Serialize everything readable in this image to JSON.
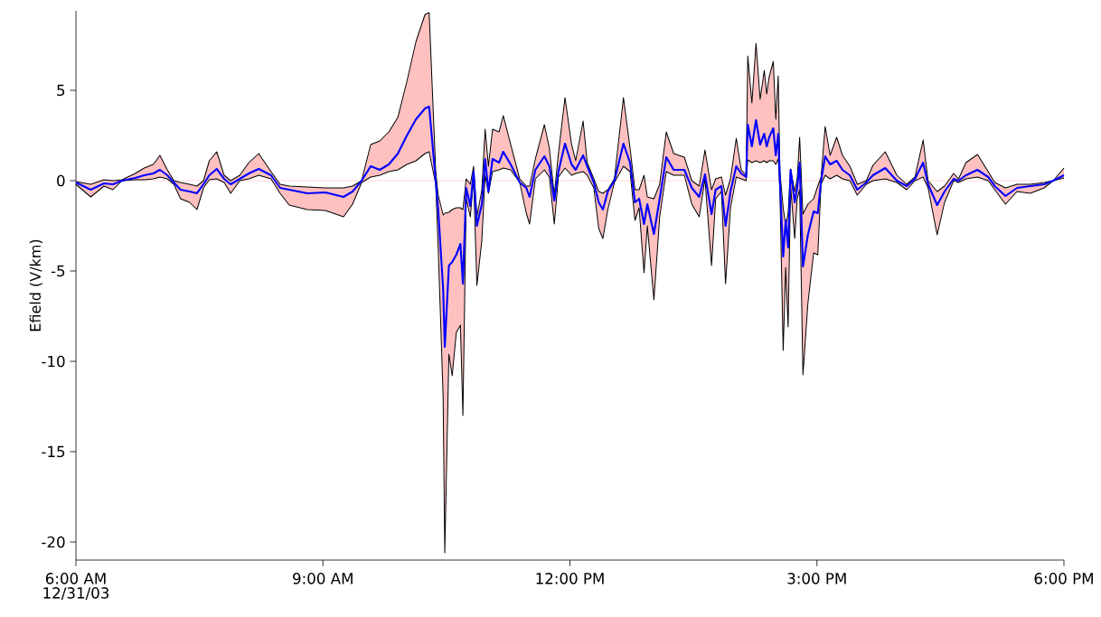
{
  "chart_data": {
    "type": "line",
    "ylabel": "Efield (V/km)",
    "annotations": [
      "12/31/03"
    ],
    "xlim": [
      6,
      18
    ],
    "ylim": [
      -21,
      9.4
    ],
    "xticks": [
      {
        "value": 6,
        "label": "6:00 AM"
      },
      {
        "value": 9,
        "label": "9:00 AM"
      },
      {
        "value": 12,
        "label": "12:00 PM"
      },
      {
        "value": 15,
        "label": "3:00 PM"
      },
      {
        "value": 18,
        "label": "6:00 PM"
      }
    ],
    "yticks": [
      -20,
      -15,
      -10,
      -5,
      0,
      5
    ],
    "grid": false,
    "marker": "none",
    "line_style": "solid",
    "ref_lines": [
      {
        "axis": "y",
        "value": 0,
        "color": "#ffd8d8"
      }
    ],
    "x": [
      6.0,
      6.18,
      6.34,
      6.45,
      6.56,
      6.72,
      6.83,
      6.94,
      7.02,
      7.11,
      7.19,
      7.27,
      7.38,
      7.47,
      7.55,
      7.62,
      7.71,
      7.8,
      7.88,
      7.99,
      8.1,
      8.22,
      8.37,
      8.48,
      8.59,
      8.81,
      9.03,
      9.25,
      9.36,
      9.47,
      9.58,
      9.69,
      9.8,
      9.91,
      10.02,
      10.13,
      10.24,
      10.29,
      10.37,
      10.4,
      10.46,
      10.48,
      10.53,
      10.57,
      10.62,
      10.67,
      10.7,
      10.74,
      10.79,
      10.83,
      10.87,
      10.93,
      10.97,
      11.01,
      11.06,
      11.14,
      11.19,
      11.28,
      11.39,
      11.47,
      11.51,
      11.58,
      11.69,
      11.75,
      11.81,
      11.86,
      11.94,
      12.02,
      12.07,
      12.16,
      12.21,
      12.29,
      12.35,
      12.4,
      12.46,
      12.54,
      12.65,
      12.73,
      12.79,
      12.84,
      12.9,
      12.94,
      13.02,
      13.09,
      13.17,
      13.26,
      13.39,
      13.48,
      13.57,
      13.64,
      13.72,
      13.77,
      13.84,
      13.89,
      13.95,
      14.02,
      14.08,
      14.14,
      14.16,
      14.21,
      14.26,
      14.31,
      14.36,
      14.39,
      14.42,
      14.47,
      14.5,
      14.53,
      14.55,
      14.59,
      14.62,
      14.65,
      14.68,
      14.73,
      14.76,
      14.79,
      14.83,
      14.89,
      14.96,
      15.01,
      15.05,
      15.1,
      15.16,
      15.24,
      15.31,
      15.4,
      15.49,
      15.6,
      15.68,
      15.83,
      15.97,
      16.09,
      16.19,
      16.29,
      16.35,
      16.46,
      16.55,
      16.66,
      16.72,
      16.81,
      16.95,
      17.08,
      17.16,
      17.29,
      17.43,
      17.59,
      17.76,
      17.87,
      18.0
    ],
    "series": [
      {
        "color": "#000000",
        "values": [
          -0.05,
          -0.2,
          0.05,
          0.0,
          0.05,
          0.4,
          0.7,
          0.9,
          1.4,
          0.6,
          0.0,
          -0.1,
          -0.2,
          -0.3,
          0.0,
          1.1,
          1.6,
          0.3,
          0.0,
          0.3,
          1.0,
          1.5,
          0.5,
          -0.2,
          -0.3,
          -0.35,
          -0.4,
          -0.4,
          -0.3,
          0.0,
          2.0,
          2.2,
          2.7,
          3.5,
          5.5,
          7.7,
          9.2,
          9.3,
          0.5,
          -0.8,
          -1.9,
          -1.8,
          -1.75,
          -1.6,
          -1.5,
          -1.5,
          -1.6,
          0.1,
          -0.2,
          0.8,
          -2.0,
          -0.5,
          2.85,
          0.8,
          2.85,
          2.7,
          3.6,
          2.0,
          0.1,
          -0.3,
          -0.3,
          1.2,
          3.1,
          1.8,
          -0.8,
          1.5,
          4.6,
          2.0,
          1.1,
          3.3,
          1.0,
          0.1,
          -0.6,
          -0.7,
          -0.5,
          0.1,
          4.6,
          1.8,
          -0.5,
          -0.5,
          0.3,
          -0.9,
          -1.0,
          -0.2,
          2.7,
          1.5,
          1.3,
          0.0,
          -0.3,
          1.7,
          -0.5,
          0.1,
          0.2,
          -0.8,
          0.1,
          2.35,
          0.6,
          0.3,
          6.9,
          4.3,
          7.6,
          4.5,
          6.1,
          4.8,
          5.75,
          6.6,
          3.4,
          5.8,
          0.5,
          -1.5,
          -2.5,
          -1.8,
          0.65,
          -0.6,
          0.1,
          2.4,
          -1.85,
          -1.3,
          -1.0,
          -0.3,
          0.2,
          3.0,
          1.4,
          2.4,
          1.4,
          0.8,
          -0.2,
          0.0,
          0.85,
          1.6,
          0.3,
          -0.2,
          0.2,
          2.25,
          0.0,
          -0.6,
          -0.3,
          0.4,
          0.1,
          1.0,
          1.45,
          0.5,
          -0.1,
          -0.4,
          -0.2,
          -0.2,
          -0.1,
          0.0,
          0.7
        ]
      },
      {
        "color": "#000000",
        "values": [
          -0.2,
          -0.9,
          -0.3,
          -0.5,
          0.0,
          0.05,
          0.05,
          0.1,
          0.2,
          0.1,
          -0.2,
          -1.0,
          -1.2,
          -1.6,
          -0.4,
          0.05,
          0.1,
          -0.1,
          -0.7,
          0.0,
          0.1,
          0.3,
          0.1,
          -0.7,
          -1.35,
          -1.6,
          -1.65,
          -2.0,
          -1.3,
          -0.1,
          0.2,
          0.3,
          0.5,
          0.6,
          0.9,
          1.1,
          1.5,
          1.6,
          -0.2,
          -3.7,
          -12.0,
          -20.6,
          -9.6,
          -10.8,
          -8.4,
          -8.0,
          -13.0,
          -1.0,
          -2.0,
          0.1,
          -5.8,
          -3.3,
          0.3,
          -0.7,
          0.5,
          0.6,
          0.7,
          0.6,
          -0.1,
          -1.8,
          -2.4,
          0.1,
          0.6,
          0.2,
          -2.4,
          0.2,
          0.7,
          0.3,
          0.4,
          0.5,
          0.3,
          -0.4,
          -2.65,
          -3.2,
          -1.6,
          -0.1,
          0.8,
          0.5,
          -2.2,
          -1.5,
          -5.1,
          -2.5,
          -6.6,
          -2.0,
          0.5,
          0.3,
          0.3,
          -1.3,
          -2.0,
          0.1,
          -4.7,
          -1.0,
          -0.6,
          -5.7,
          -1.5,
          0.2,
          0.1,
          0.0,
          1.15,
          1.0,
          1.1,
          1.0,
          1.1,
          1.0,
          1.1,
          1.1,
          0.9,
          1.2,
          -0.5,
          -9.4,
          -4.8,
          -8.1,
          -0.3,
          -3.2,
          -1.0,
          -0.5,
          -10.75,
          -6.8,
          -4.0,
          -4.1,
          -0.2,
          0.3,
          0.1,
          0.3,
          0.1,
          0.0,
          -0.8,
          -0.2,
          0.0,
          0.1,
          -0.1,
          -0.5,
          0.0,
          0.2,
          -0.4,
          -3.0,
          -1.2,
          0.0,
          -0.1,
          0.1,
          0.2,
          0.0,
          -0.5,
          -1.3,
          -0.6,
          -0.7,
          -0.4,
          0.0,
          0.15
        ]
      },
      {
        "color": "#0000ff",
        "values": [
          -0.1,
          -0.5,
          -0.15,
          -0.2,
          0.0,
          0.15,
          0.3,
          0.4,
          0.6,
          0.3,
          -0.1,
          -0.5,
          -0.6,
          -0.7,
          -0.2,
          0.3,
          0.65,
          0.1,
          -0.2,
          0.1,
          0.4,
          0.65,
          0.3,
          -0.4,
          -0.5,
          -0.7,
          -0.65,
          -0.9,
          -0.6,
          0.0,
          0.8,
          0.6,
          0.9,
          1.5,
          2.5,
          3.4,
          4.0,
          4.1,
          0.0,
          -1.6,
          -6.0,
          -9.2,
          -4.7,
          -4.5,
          -4.1,
          -3.5,
          -5.7,
          -0.4,
          -1.4,
          0.5,
          -2.5,
          -1.3,
          1.2,
          -0.6,
          1.2,
          1.0,
          1.6,
          0.9,
          -0.1,
          -0.4,
          -0.9,
          0.6,
          1.35,
          0.8,
          -1.1,
          0.5,
          2.05,
          0.9,
          0.6,
          1.4,
          0.8,
          -0.1,
          -1.2,
          -1.6,
          -0.6,
          0.0,
          2.05,
          1.0,
          -1.2,
          -1.0,
          -2.4,
          -1.3,
          -2.95,
          -1.0,
          1.3,
          0.6,
          0.6,
          -0.4,
          -0.9,
          0.35,
          -1.85,
          -0.5,
          -0.3,
          -2.5,
          -0.6,
          0.8,
          0.4,
          0.2,
          3.1,
          1.9,
          3.35,
          2.0,
          2.6,
          1.9,
          2.4,
          2.9,
          1.4,
          2.6,
          0.0,
          -4.2,
          -2.2,
          -3.7,
          0.6,
          -1.2,
          -0.4,
          1.0,
          -4.75,
          -3.0,
          -1.7,
          -1.8,
          0.0,
          1.35,
          0.9,
          1.1,
          0.6,
          0.3,
          -0.5,
          -0.1,
          0.3,
          0.7,
          0.0,
          -0.3,
          0.1,
          1.0,
          -0.2,
          -1.35,
          -0.6,
          0.1,
          0.0,
          0.3,
          0.6,
          0.2,
          -0.3,
          -0.85,
          -0.4,
          -0.3,
          -0.2,
          0.0,
          0.3
        ],
        "lower": [
          -0.2,
          -0.9,
          -0.3,
          -0.5,
          0.0,
          0.05,
          0.05,
          0.1,
          0.2,
          0.1,
          -0.2,
          -1.0,
          -1.2,
          -1.6,
          -0.4,
          0.05,
          0.1,
          -0.1,
          -0.7,
          0.0,
          0.1,
          0.3,
          0.1,
          -0.7,
          -1.35,
          -1.6,
          -1.65,
          -2.0,
          -1.3,
          -0.1,
          0.2,
          0.3,
          0.5,
          0.6,
          0.9,
          1.1,
          1.5,
          1.6,
          -0.2,
          -3.7,
          -12.0,
          -20.6,
          -9.6,
          -10.8,
          -8.4,
          -8.0,
          -13.0,
          -1.0,
          -2.0,
          0.1,
          -5.8,
          -3.3,
          0.3,
          -0.7,
          0.5,
          0.6,
          0.7,
          0.6,
          -0.1,
          -1.8,
          -2.4,
          0.1,
          0.6,
          0.2,
          -2.4,
          0.2,
          0.7,
          0.3,
          0.4,
          0.5,
          0.3,
          -0.4,
          -2.65,
          -3.2,
          -1.6,
          -0.1,
          0.8,
          0.5,
          -2.2,
          -1.5,
          -5.1,
          -2.5,
          -6.6,
          -2.0,
          0.5,
          0.3,
          0.3,
          -1.3,
          -2.0,
          0.1,
          -4.7,
          -1.0,
          -0.6,
          -5.7,
          -1.5,
          0.2,
          0.1,
          0.0,
          1.15,
          1.0,
          1.1,
          1.0,
          1.1,
          1.0,
          1.1,
          1.1,
          0.9,
          1.2,
          -0.5,
          -9.4,
          -4.8,
          -8.1,
          -0.3,
          -3.2,
          -1.0,
          -0.5,
          -10.75,
          -6.8,
          -4.0,
          -4.1,
          -0.2,
          0.3,
          0.1,
          0.3,
          0.1,
          0.0,
          -0.8,
          -0.2,
          0.0,
          0.1,
          -0.1,
          -0.5,
          0.0,
          0.2,
          -0.4,
          -3.0,
          -1.2,
          0.0,
          -0.1,
          0.1,
          0.2,
          0.0,
          -0.5,
          -1.3,
          -0.6,
          -0.7,
          -0.4,
          0.0,
          0.15
        ],
        "upper": [
          -0.05,
          -0.2,
          0.05,
          0.0,
          0.05,
          0.4,
          0.7,
          0.9,
          1.4,
          0.6,
          0.0,
          -0.1,
          -0.2,
          -0.3,
          0.0,
          1.1,
          1.6,
          0.3,
          0.0,
          0.3,
          1.0,
          1.5,
          0.5,
          -0.2,
          -0.3,
          -0.35,
          -0.4,
          -0.4,
          -0.3,
          0.0,
          2.0,
          2.2,
          2.7,
          3.5,
          5.5,
          7.7,
          9.2,
          9.3,
          0.5,
          -0.8,
          -1.9,
          -1.8,
          -1.75,
          -1.6,
          -1.5,
          -1.5,
          -1.6,
          0.1,
          -0.2,
          0.8,
          -2.0,
          -0.5,
          2.85,
          0.8,
          2.85,
          2.7,
          3.6,
          2.0,
          0.1,
          -0.3,
          -0.3,
          1.2,
          3.1,
          1.8,
          -0.8,
          1.5,
          4.6,
          2.0,
          1.1,
          3.3,
          1.0,
          0.1,
          -0.6,
          -0.7,
          -0.5,
          0.1,
          4.6,
          1.8,
          -0.5,
          -0.5,
          0.3,
          -0.9,
          -1.0,
          -0.2,
          2.7,
          1.5,
          1.3,
          0.0,
          -0.3,
          1.7,
          -0.5,
          0.1,
          0.2,
          -0.8,
          0.1,
          2.35,
          0.6,
          0.3,
          6.9,
          4.3,
          7.6,
          4.5,
          6.1,
          4.8,
          5.75,
          6.6,
          3.4,
          5.8,
          0.5,
          -1.5,
          -2.5,
          -1.8,
          0.65,
          -0.6,
          0.1,
          2.4,
          -1.85,
          -1.3,
          -1.0,
          -0.3,
          0.2,
          3.0,
          1.4,
          2.4,
          1.4,
          0.8,
          -0.2,
          0.0,
          0.85,
          1.6,
          0.3,
          -0.2,
          0.2,
          2.25,
          0.0,
          -0.6,
          -0.3,
          0.4,
          0.1,
          1.0,
          1.45,
          0.5,
          -0.1,
          -0.4,
          -0.2,
          -0.2,
          -0.1,
          0.0,
          0.7
        ]
      }
    ]
  }
}
